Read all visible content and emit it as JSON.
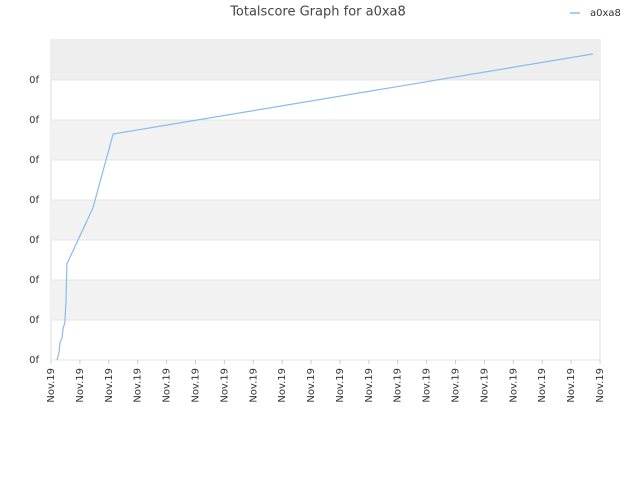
{
  "chart_data": {
    "type": "line",
    "title": "Totalscore Graph for a0xa8",
    "x": [
      0.21,
      0.28,
      0.31,
      0.38,
      0.42,
      0.48,
      0.52,
      0.55,
      1.45,
      2.15,
      18.75
    ],
    "series": [
      {
        "name": "a0xa8",
        "color": "#88bbee",
        "values": [
          0,
          0.2,
          0.43,
          0.55,
          0.8,
          0.93,
          1.5,
          2.4,
          3.8,
          5.65,
          7.65
        ]
      }
    ],
    "xlim": [
      0,
      19
    ],
    "xticks": [
      {
        "value": 0,
        "label": "Nov.19"
      },
      {
        "value": 1,
        "label": "Nov.19"
      },
      {
        "value": 2,
        "label": "Nov.19"
      },
      {
        "value": 3,
        "label": "Nov.19"
      },
      {
        "value": 4,
        "label": "Nov.19"
      },
      {
        "value": 5,
        "label": "Nov.19"
      },
      {
        "value": 6,
        "label": "Nov.19"
      },
      {
        "value": 7,
        "label": "Nov.19"
      },
      {
        "value": 8,
        "label": "Nov.19"
      },
      {
        "value": 9,
        "label": "Nov.19"
      },
      {
        "value": 10,
        "label": "Nov.19"
      },
      {
        "value": 11,
        "label": "Nov.19"
      },
      {
        "value": 12,
        "label": "Nov.19"
      },
      {
        "value": 13,
        "label": "Nov.19"
      },
      {
        "value": 14,
        "label": "Nov.19"
      },
      {
        "value": 15,
        "label": "Nov.19"
      },
      {
        "value": 16,
        "label": "Nov.19"
      },
      {
        "value": 17,
        "label": "Nov.19"
      },
      {
        "value": 18,
        "label": "Nov.19"
      },
      {
        "value": 19,
        "label": "Nov.19"
      }
    ],
    "ylim": [
      0,
      8
    ],
    "yticks": [
      {
        "value": 0,
        "label": "0f"
      },
      {
        "value": 1,
        "label": "0f"
      },
      {
        "value": 2,
        "label": "0f"
      },
      {
        "value": 3,
        "label": "0f"
      },
      {
        "value": 4,
        "label": "0f"
      },
      {
        "value": 5,
        "label": "0f"
      },
      {
        "value": 6,
        "label": "0f"
      },
      {
        "value": 7,
        "label": "0f"
      }
    ],
    "grid": true,
    "legend": "top-right"
  }
}
